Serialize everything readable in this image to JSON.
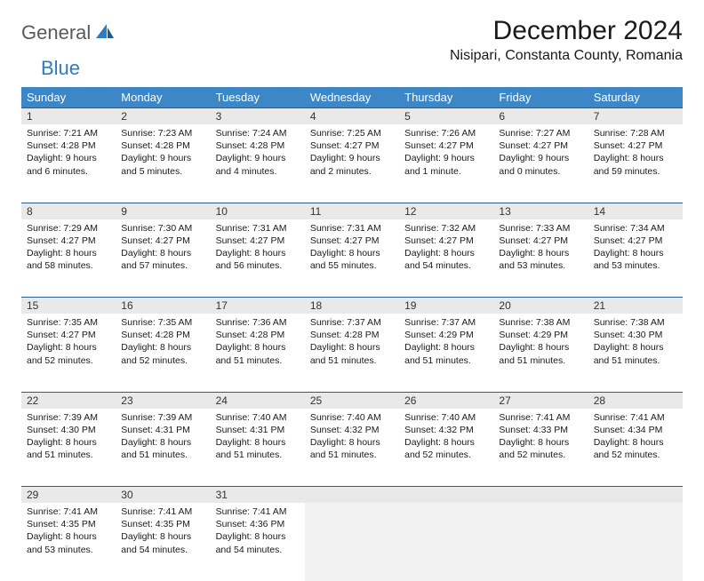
{
  "logo": {
    "text1": "General",
    "text2": "Blue"
  },
  "header": {
    "month_title": "December 2024",
    "location": "Nisipari, Constanta County, Romania"
  },
  "colors": {
    "header_bg": "#3d87c7",
    "header_text": "#ffffff",
    "daynum_bg": "#e9e9e9",
    "row_border": "#2a5d8a",
    "empty_bg": "#f2f2f2",
    "logo_gray": "#5a5a5a",
    "logo_blue": "#2d7bc0"
  },
  "day_headers": [
    "Sunday",
    "Monday",
    "Tuesday",
    "Wednesday",
    "Thursday",
    "Friday",
    "Saturday"
  ],
  "weeks": [
    [
      {
        "num": "1",
        "sunrise": "7:21 AM",
        "sunset": "4:28 PM",
        "daylight": "9 hours and 6 minutes."
      },
      {
        "num": "2",
        "sunrise": "7:23 AM",
        "sunset": "4:28 PM",
        "daylight": "9 hours and 5 minutes."
      },
      {
        "num": "3",
        "sunrise": "7:24 AM",
        "sunset": "4:28 PM",
        "daylight": "9 hours and 4 minutes."
      },
      {
        "num": "4",
        "sunrise": "7:25 AM",
        "sunset": "4:27 PM",
        "daylight": "9 hours and 2 minutes."
      },
      {
        "num": "5",
        "sunrise": "7:26 AM",
        "sunset": "4:27 PM",
        "daylight": "9 hours and 1 minute."
      },
      {
        "num": "6",
        "sunrise": "7:27 AM",
        "sunset": "4:27 PM",
        "daylight": "9 hours and 0 minutes."
      },
      {
        "num": "7",
        "sunrise": "7:28 AM",
        "sunset": "4:27 PM",
        "daylight": "8 hours and 59 minutes."
      }
    ],
    [
      {
        "num": "8",
        "sunrise": "7:29 AM",
        "sunset": "4:27 PM",
        "daylight": "8 hours and 58 minutes."
      },
      {
        "num": "9",
        "sunrise": "7:30 AM",
        "sunset": "4:27 PM",
        "daylight": "8 hours and 57 minutes."
      },
      {
        "num": "10",
        "sunrise": "7:31 AM",
        "sunset": "4:27 PM",
        "daylight": "8 hours and 56 minutes."
      },
      {
        "num": "11",
        "sunrise": "7:31 AM",
        "sunset": "4:27 PM",
        "daylight": "8 hours and 55 minutes."
      },
      {
        "num": "12",
        "sunrise": "7:32 AM",
        "sunset": "4:27 PM",
        "daylight": "8 hours and 54 minutes."
      },
      {
        "num": "13",
        "sunrise": "7:33 AM",
        "sunset": "4:27 PM",
        "daylight": "8 hours and 53 minutes."
      },
      {
        "num": "14",
        "sunrise": "7:34 AM",
        "sunset": "4:27 PM",
        "daylight": "8 hours and 53 minutes."
      }
    ],
    [
      {
        "num": "15",
        "sunrise": "7:35 AM",
        "sunset": "4:27 PM",
        "daylight": "8 hours and 52 minutes."
      },
      {
        "num": "16",
        "sunrise": "7:35 AM",
        "sunset": "4:28 PM",
        "daylight": "8 hours and 52 minutes."
      },
      {
        "num": "17",
        "sunrise": "7:36 AM",
        "sunset": "4:28 PM",
        "daylight": "8 hours and 51 minutes."
      },
      {
        "num": "18",
        "sunrise": "7:37 AM",
        "sunset": "4:28 PM",
        "daylight": "8 hours and 51 minutes."
      },
      {
        "num": "19",
        "sunrise": "7:37 AM",
        "sunset": "4:29 PM",
        "daylight": "8 hours and 51 minutes."
      },
      {
        "num": "20",
        "sunrise": "7:38 AM",
        "sunset": "4:29 PM",
        "daylight": "8 hours and 51 minutes."
      },
      {
        "num": "21",
        "sunrise": "7:38 AM",
        "sunset": "4:30 PM",
        "daylight": "8 hours and 51 minutes."
      }
    ],
    [
      {
        "num": "22",
        "sunrise": "7:39 AM",
        "sunset": "4:30 PM",
        "daylight": "8 hours and 51 minutes."
      },
      {
        "num": "23",
        "sunrise": "7:39 AM",
        "sunset": "4:31 PM",
        "daylight": "8 hours and 51 minutes."
      },
      {
        "num": "24",
        "sunrise": "7:40 AM",
        "sunset": "4:31 PM",
        "daylight": "8 hours and 51 minutes."
      },
      {
        "num": "25",
        "sunrise": "7:40 AM",
        "sunset": "4:32 PM",
        "daylight": "8 hours and 51 minutes."
      },
      {
        "num": "26",
        "sunrise": "7:40 AM",
        "sunset": "4:32 PM",
        "daylight": "8 hours and 52 minutes."
      },
      {
        "num": "27",
        "sunrise": "7:41 AM",
        "sunset": "4:33 PM",
        "daylight": "8 hours and 52 minutes."
      },
      {
        "num": "28",
        "sunrise": "7:41 AM",
        "sunset": "4:34 PM",
        "daylight": "8 hours and 52 minutes."
      }
    ],
    [
      {
        "num": "29",
        "sunrise": "7:41 AM",
        "sunset": "4:35 PM",
        "daylight": "8 hours and 53 minutes."
      },
      {
        "num": "30",
        "sunrise": "7:41 AM",
        "sunset": "4:35 PM",
        "daylight": "8 hours and 54 minutes."
      },
      {
        "num": "31",
        "sunrise": "7:41 AM",
        "sunset": "4:36 PM",
        "daylight": "8 hours and 54 minutes."
      },
      null,
      null,
      null,
      null
    ]
  ],
  "labels": {
    "sunrise": "Sunrise:",
    "sunset": "Sunset:",
    "daylight": "Daylight:"
  }
}
